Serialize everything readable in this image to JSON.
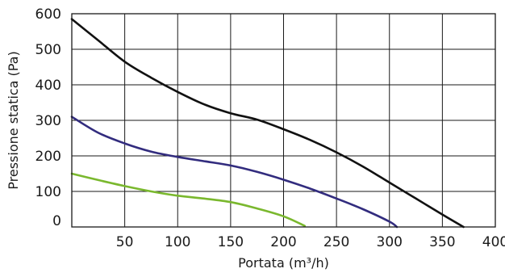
{
  "chart_data": {
    "type": "line",
    "title": "",
    "xlabel": "Portata (m³/h)",
    "ylabel": "Pressione statica (Pa)",
    "xlim": [
      0,
      400
    ],
    "ylim": [
      0,
      600
    ],
    "grid": true,
    "legend": "none",
    "x_ticks": [
      "50",
      "100",
      "150",
      "200",
      "250",
      "300",
      "350",
      "400"
    ],
    "y_ticks": [
      "0",
      "100",
      "200",
      "300",
      "400",
      "500",
      "600"
    ],
    "series": [
      {
        "color": "#111111",
        "x": [
          0,
          25,
          50,
          75,
          100,
          125,
          150,
          175,
          200,
          225,
          250,
          275,
          300,
          325,
          350,
          370
        ],
        "y": [
          585,
          525,
          465,
          420,
          380,
          345,
          320,
          302,
          275,
          245,
          210,
          170,
          125,
          80,
          35,
          0
        ]
      },
      {
        "color": "#322c7e",
        "x": [
          0,
          25,
          50,
          75,
          100,
          125,
          150,
          175,
          200,
          225,
          250,
          275,
          300,
          307
        ],
        "y": [
          310,
          265,
          235,
          212,
          197,
          185,
          173,
          155,
          133,
          108,
          80,
          50,
          15,
          0
        ]
      },
      {
        "color": "#7ab82e",
        "x": [
          0,
          25,
          50,
          75,
          100,
          125,
          150,
          175,
          200,
          220
        ],
        "y": [
          150,
          132,
          115,
          100,
          88,
          80,
          70,
          52,
          30,
          3
        ]
      }
    ]
  }
}
